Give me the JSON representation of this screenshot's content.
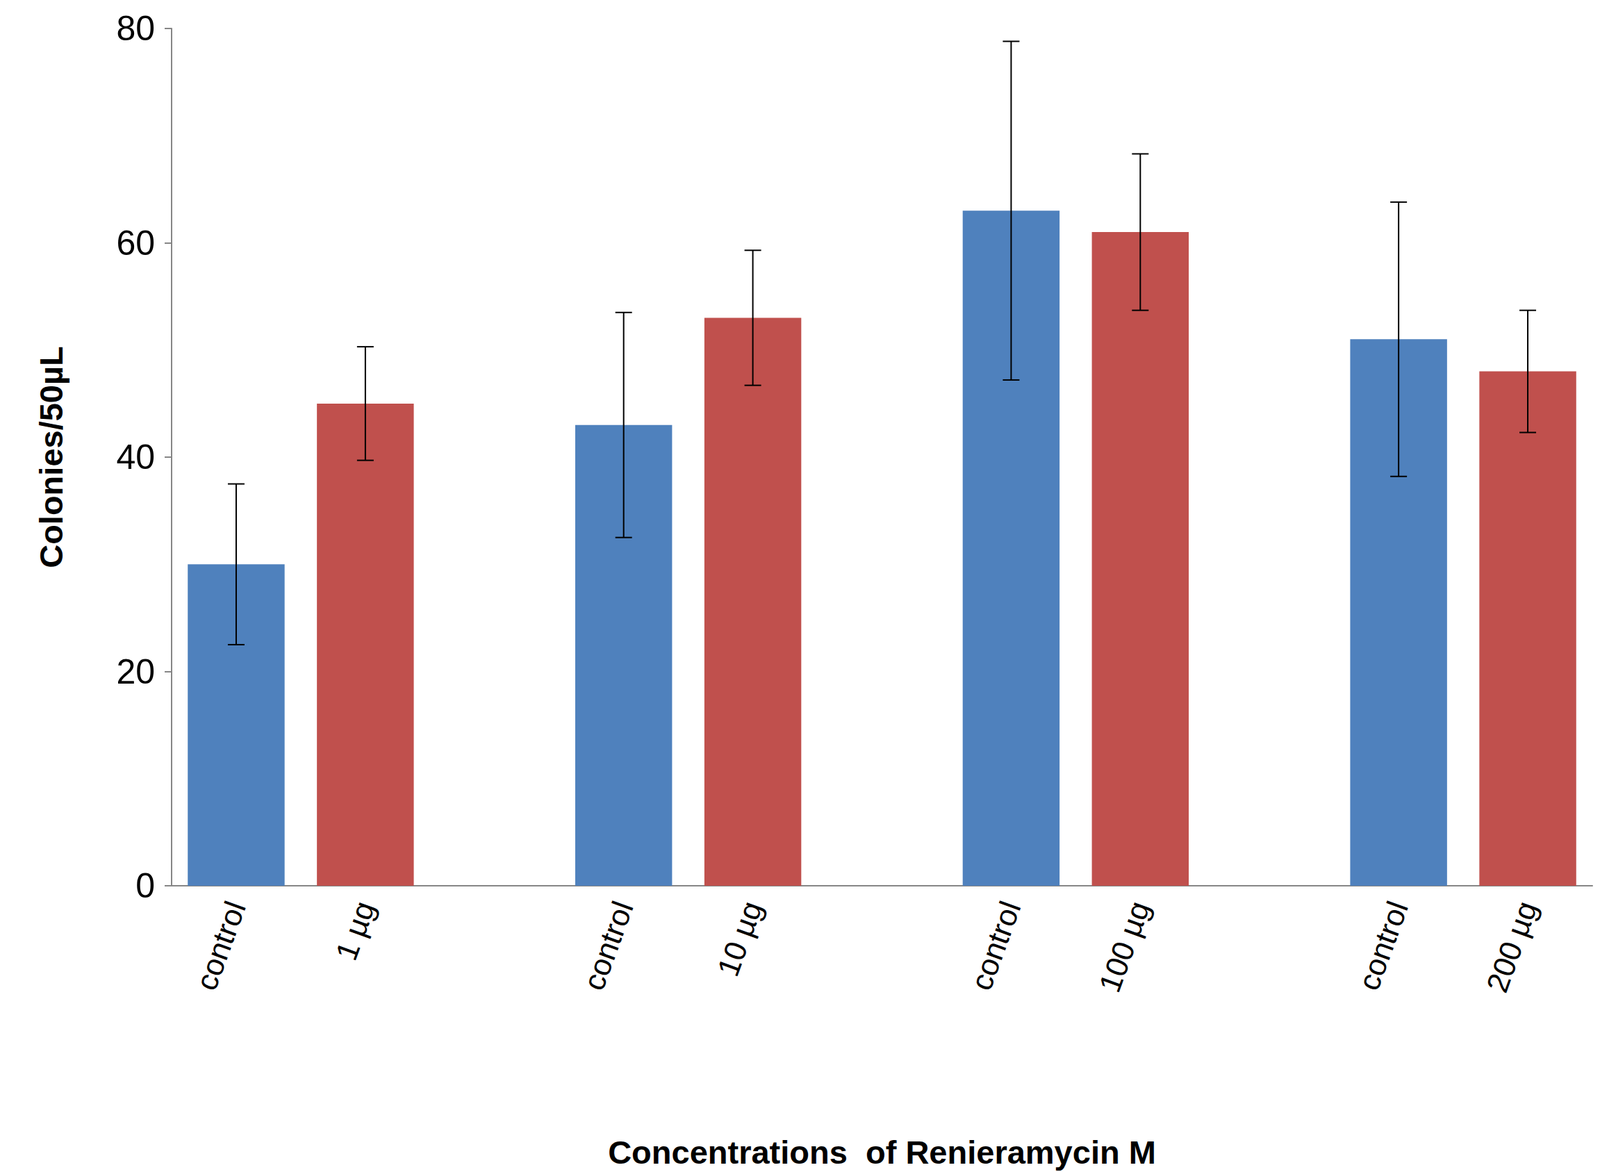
{
  "chart_data": {
    "type": "bar",
    "x_label": "Concentrations  of Renieramycin M",
    "y_label": "Colonies/50µL",
    "categories": [
      "control",
      "1 µg",
      null,
      "control",
      "10 µg",
      null,
      "control",
      "100 µg",
      null,
      "control",
      "200 µg"
    ],
    "values": [
      30,
      45,
      null,
      43,
      53,
      null,
      63,
      61,
      null,
      51,
      48
    ],
    "errors": [
      7.5,
      5.3,
      null,
      10.5,
      6.3,
      null,
      15.8,
      7.3,
      null,
      12.8,
      5.7
    ],
    "colors": [
      "#4f81bd",
      "#c0504d",
      null,
      "#4f81bd",
      "#c0504d",
      null,
      "#4f81bd",
      "#c0504d",
      null,
      "#4f81bd",
      "#c0504d"
    ],
    "ylim": [
      0,
      80
    ],
    "yticks": [
      0,
      20,
      40,
      60,
      80
    ],
    "grid": false
  }
}
